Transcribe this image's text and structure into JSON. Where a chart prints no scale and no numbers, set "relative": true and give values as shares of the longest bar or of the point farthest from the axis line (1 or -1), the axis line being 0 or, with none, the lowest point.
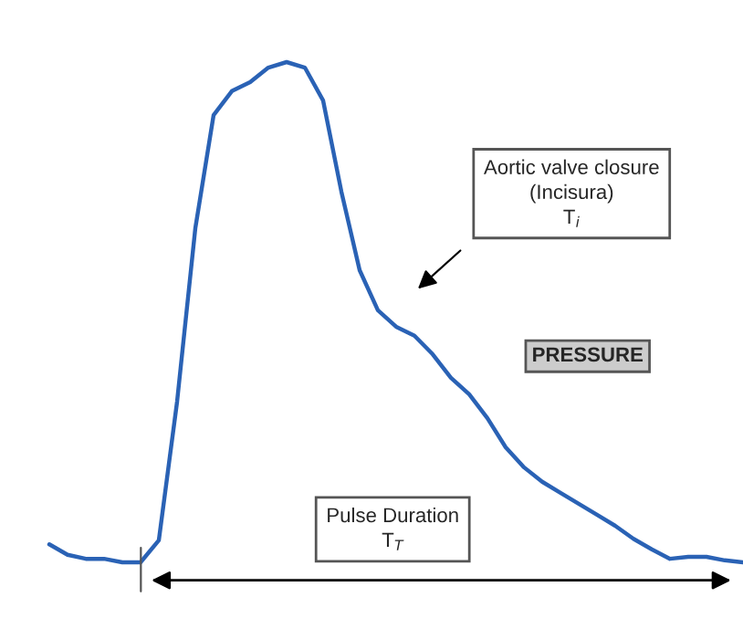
{
  "chart_data": {
    "type": "line",
    "relative": true,
    "categories": [
      null,
      null,
      null,
      null,
      null,
      null,
      null,
      null,
      null,
      null,
      null,
      null,
      null,
      null,
      null,
      null,
      null,
      null,
      null,
      null,
      null,
      null,
      null,
      null,
      null,
      null,
      null,
      null,
      null,
      null,
      null,
      null,
      null,
      null,
      null,
      null,
      null,
      null,
      null
    ],
    "series": [
      {
        "color": "#2a62b5",
        "values": [
          0.036,
          0.015,
          0.007,
          0.007,
          0,
          0,
          0.044,
          0.321,
          0.668,
          0.894,
          0.942,
          0.96,
          0.989,
          1,
          0.989,
          0.923,
          0.741,
          0.584,
          0.504,
          0.471,
          0.453,
          0.416,
          0.369,
          0.336,
          0.288,
          0.23,
          0.19,
          0.161,
          0.139,
          0.117,
          0.095,
          0.073,
          0.047,
          0.026,
          0.007,
          0.011,
          0.011,
          0.004,
          0
        ]
      }
    ],
    "annotations": [
      "Aortic valve closure\n(Incisura)\nT$_{i}$",
      "PRESSURE",
      "Pulse Duration\nT$_{T}$"
    ],
    "marker": "none",
    "line_style": "solid",
    "legend": false
  }
}
